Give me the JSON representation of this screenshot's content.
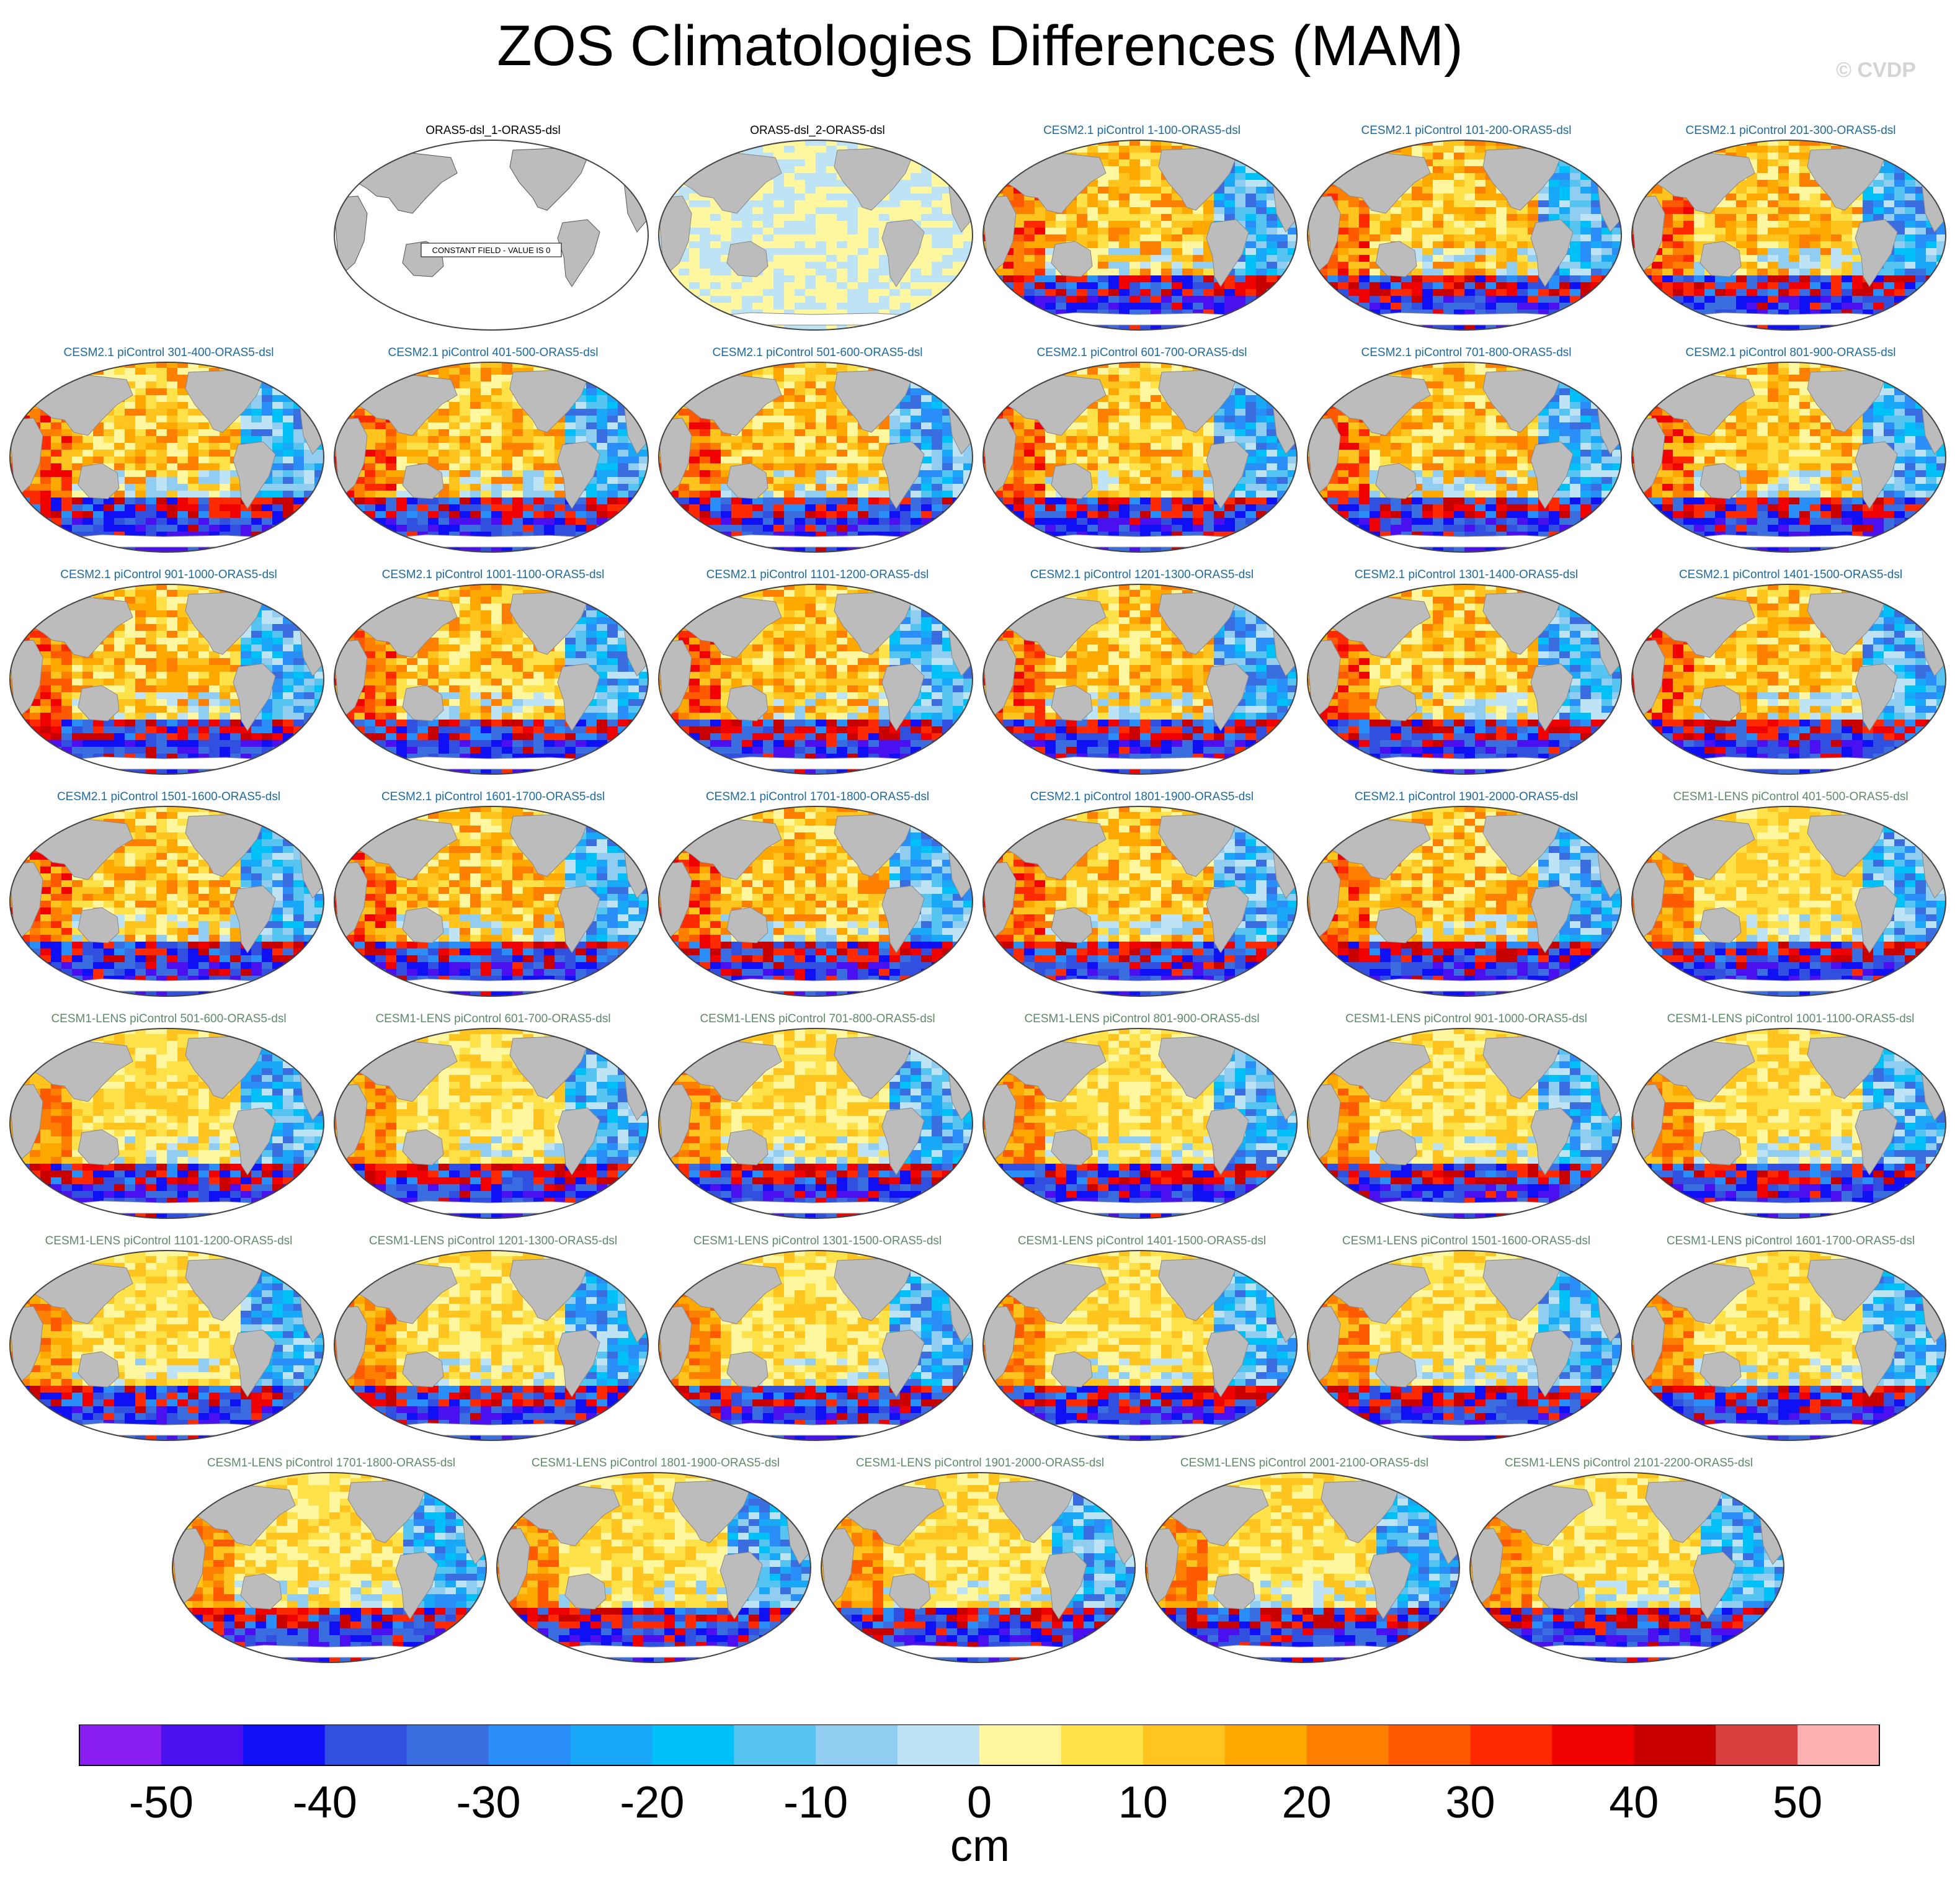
{
  "title": "ZOS Climatologies Differences (MAM)",
  "watermark": "© CVDP",
  "colors": {
    "reference_title": "#000000",
    "cesm2_title": "#1f6a9c",
    "cesm1_title": "#5e8a6a",
    "land": "#bcbcbc"
  },
  "panels": [
    {
      "title": "ORAS5-dsl_1-ORAS5-dsl",
      "group": "ref_zero",
      "note": "CONSTANT FIELD - VALUE IS 0"
    },
    {
      "title": "ORAS5-dsl_2-ORAS5-dsl",
      "group": "ref_small"
    },
    {
      "title": "CESM2.1 piControl 1-100-ORAS5-dsl",
      "group": "cesm2"
    },
    {
      "title": "CESM2.1 piControl 101-200-ORAS5-dsl",
      "group": "cesm2"
    },
    {
      "title": "CESM2.1 piControl 201-300-ORAS5-dsl",
      "group": "cesm2"
    },
    {
      "title": "CESM2.1 piControl 301-400-ORAS5-dsl",
      "group": "cesm2"
    },
    {
      "title": "CESM2.1 piControl 401-500-ORAS5-dsl",
      "group": "cesm2"
    },
    {
      "title": "CESM2.1 piControl 501-600-ORAS5-dsl",
      "group": "cesm2"
    },
    {
      "title": "CESM2.1 piControl 601-700-ORAS5-dsl",
      "group": "cesm2"
    },
    {
      "title": "CESM2.1 piControl 701-800-ORAS5-dsl",
      "group": "cesm2"
    },
    {
      "title": "CESM2.1 piControl 801-900-ORAS5-dsl",
      "group": "cesm2"
    },
    {
      "title": "CESM2.1 piControl 901-1000-ORAS5-dsl",
      "group": "cesm2"
    },
    {
      "title": "CESM2.1 piControl 1001-1100-ORAS5-dsl",
      "group": "cesm2"
    },
    {
      "title": "CESM2.1 piControl 1101-1200-ORAS5-dsl",
      "group": "cesm2"
    },
    {
      "title": "CESM2.1 piControl 1201-1300-ORAS5-dsl",
      "group": "cesm2"
    },
    {
      "title": "CESM2.1 piControl 1301-1400-ORAS5-dsl",
      "group": "cesm2"
    },
    {
      "title": "CESM2.1 piControl 1401-1500-ORAS5-dsl",
      "group": "cesm2"
    },
    {
      "title": "CESM2.1 piControl 1501-1600-ORAS5-dsl",
      "group": "cesm2"
    },
    {
      "title": "CESM2.1 piControl 1601-1700-ORAS5-dsl",
      "group": "cesm2"
    },
    {
      "title": "CESM2.1 piControl 1701-1800-ORAS5-dsl",
      "group": "cesm2"
    },
    {
      "title": "CESM2.1 piControl 1801-1900-ORAS5-dsl",
      "group": "cesm2"
    },
    {
      "title": "CESM2.1 piControl 1901-2000-ORAS5-dsl",
      "group": "cesm2"
    },
    {
      "title": "CESM1-LENS piControl 401-500-ORAS5-dsl",
      "group": "cesm1"
    },
    {
      "title": "CESM1-LENS piControl 501-600-ORAS5-dsl",
      "group": "cesm1"
    },
    {
      "title": "CESM1-LENS piControl 601-700-ORAS5-dsl",
      "group": "cesm1"
    },
    {
      "title": "CESM1-LENS piControl 701-800-ORAS5-dsl",
      "group": "cesm1"
    },
    {
      "title": "CESM1-LENS piControl 801-900-ORAS5-dsl",
      "group": "cesm1"
    },
    {
      "title": "CESM1-LENS piControl 901-1000-ORAS5-dsl",
      "group": "cesm1"
    },
    {
      "title": "CESM1-LENS piControl 1001-1100-ORAS5-dsl",
      "group": "cesm1"
    },
    {
      "title": "CESM1-LENS piControl 1101-1200-ORAS5-dsl",
      "group": "cesm1"
    },
    {
      "title": "CESM1-LENS piControl 1201-1300-ORAS5-dsl",
      "group": "cesm1"
    },
    {
      "title": "CESM1-LENS piControl 1301-1500-ORAS5-dsl",
      "group": "cesm1"
    },
    {
      "title": "CESM1-LENS piControl 1401-1500-ORAS5-dsl",
      "group": "cesm1"
    },
    {
      "title": "CESM1-LENS piControl 1501-1600-ORAS5-dsl",
      "group": "cesm1"
    },
    {
      "title": "CESM1-LENS piControl 1601-1700-ORAS5-dsl",
      "group": "cesm1"
    },
    {
      "title": "CESM1-LENS piControl 1701-1800-ORAS5-dsl",
      "group": "cesm1"
    },
    {
      "title": "CESM1-LENS piControl 1801-1900-ORAS5-dsl",
      "group": "cesm1"
    },
    {
      "title": "CESM1-LENS piControl 1901-2000-ORAS5-dsl",
      "group": "cesm1"
    },
    {
      "title": "CESM1-LENS piControl 2001-2100-ORAS5-dsl",
      "group": "cesm1"
    },
    {
      "title": "CESM1-LENS piControl 2101-2200-ORAS5-dsl",
      "group": "cesm1"
    }
  ],
  "chart_data": {
    "type": "heatmap",
    "projection": "Robinson, Pacific-centred global maps",
    "field": "sea surface height (ZOS) climatology difference, MAM",
    "colorbar": {
      "unit_label": "cm",
      "tick_labels": [
        "-50",
        "-40",
        "-30",
        "-20",
        "-10",
        "0",
        "10",
        "20",
        "30",
        "40",
        "50"
      ],
      "tick_values": [
        -50,
        -40,
        -30,
        -20,
        -10,
        0,
        10,
        20,
        30,
        40,
        50
      ],
      "range": [
        -55,
        55
      ],
      "interval": 5,
      "colors": [
        "#8a1ef0",
        "#4a10f0",
        "#1010f5",
        "#3150e0",
        "#3a6ee0",
        "#2a8ef8",
        "#19a8f8",
        "#00c0f8",
        "#55c4f0",
        "#90cdf0",
        "#bde3f5",
        "#fff7a0",
        "#ffe14a",
        "#ffc41e",
        "#ffa800",
        "#ff8000",
        "#ff5a00",
        "#ff2a00",
        "#f00000",
        "#c80000",
        "#d84040",
        "#ffb0b0"
      ]
    },
    "panel_count": 40,
    "reference_panel_values": {
      "ORAS5-dsl_1-ORAS5-dsl": 0
    }
  }
}
